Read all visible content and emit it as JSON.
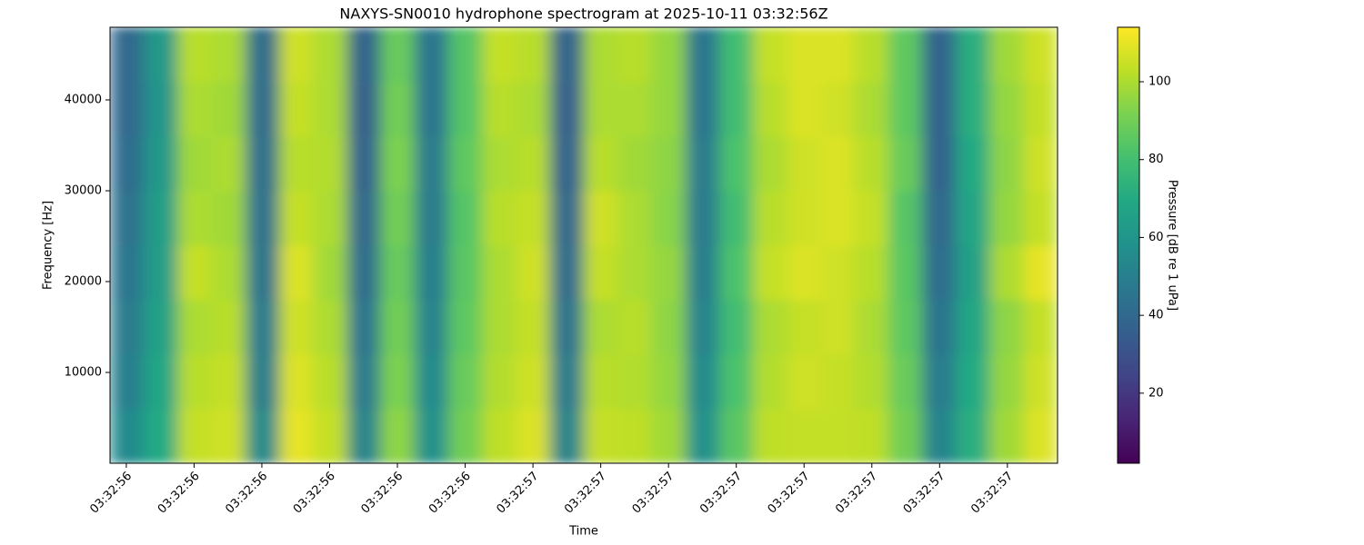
{
  "chart_data": {
    "type": "heatmap",
    "title": "NAXYS-SN0010 hydrophone spectrogram at 2025-10-11 03:32:56Z",
    "xlabel": "Time",
    "ylabel": "Frequency [Hz]",
    "colorbar_label": "Pressure [dB re 1 uPa]",
    "colormap": "viridis",
    "x_bins": [
      56.376,
      56.426,
      56.476,
      56.526,
      56.576,
      56.626,
      56.676,
      56.726,
      56.775,
      56.825,
      56.875,
      56.925,
      56.975,
      57.025,
      57.075,
      57.125,
      57.175,
      57.225,
      57.275,
      57.325,
      57.375,
      57.425,
      57.474,
      57.524,
      57.574,
      57.624,
      57.674,
      57.724,
      57.774
    ],
    "y_bins": [
      0,
      6000,
      12000,
      18000,
      24000,
      30000,
      36000,
      42000,
      48000
    ],
    "values": [
      [
        55,
        70,
        104,
        106,
        55,
        110,
        104,
        52,
        95,
        58,
        90,
        103,
        108,
        52,
        104,
        103,
        98,
        58,
        85,
        103,
        104,
        104,
        103,
        90,
        52,
        72,
        98,
        108
      ],
      [
        50,
        68,
        102,
        104,
        50,
        108,
        102,
        48,
        92,
        55,
        88,
        101,
        106,
        48,
        102,
        101,
        96,
        55,
        82,
        101,
        106,
        104,
        101,
        88,
        48,
        70,
        96,
        106
      ],
      [
        48,
        66,
        100,
        102,
        48,
        106,
        100,
        45,
        90,
        52,
        86,
        100,
        104,
        45,
        100,
        102,
        95,
        52,
        80,
        100,
        104,
        106,
        100,
        86,
        45,
        68,
        95,
        104
      ],
      [
        46,
        64,
        104,
        100,
        45,
        108,
        98,
        42,
        88,
        50,
        85,
        100,
        106,
        42,
        104,
        100,
        96,
        50,
        82,
        104,
        108,
        106,
        102,
        85,
        42,
        66,
        100,
        110
      ],
      [
        44,
        64,
        100,
        98,
        44,
        104,
        100,
        40,
        90,
        48,
        84,
        102,
        104,
        40,
        106,
        100,
        94,
        48,
        80,
        102,
        106,
        108,
        104,
        84,
        40,
        68,
        96,
        104
      ],
      [
        42,
        62,
        98,
        100,
        43,
        102,
        101,
        38,
        92,
        48,
        86,
        100,
        102,
        38,
        102,
        98,
        95,
        48,
        82,
        100,
        106,
        108,
        102,
        88,
        38,
        70,
        95,
        106
      ],
      [
        40,
        60,
        100,
        98,
        42,
        104,
        100,
        36,
        90,
        46,
        84,
        102,
        100,
        36,
        100,
        100,
        96,
        46,
        80,
        102,
        108,
        106,
        100,
        86,
        38,
        72,
        96,
        104
      ],
      [
        40,
        62,
        102,
        100,
        42,
        106,
        100,
        38,
        88,
        46,
        84,
        104,
        102,
        38,
        100,
        102,
        96,
        46,
        80,
        104,
        108,
        108,
        102,
        86,
        38,
        72,
        98,
        106
      ]
    ],
    "xlim": [
      56.376,
      57.774
    ],
    "xticks": [
      {
        "value": 56.4,
        "label": "03:32:56"
      },
      {
        "value": 56.5,
        "label": "03:32:56"
      },
      {
        "value": 56.6,
        "label": "03:32:56"
      },
      {
        "value": 56.7,
        "label": "03:32:56"
      },
      {
        "value": 56.8,
        "label": "03:32:56"
      },
      {
        "value": 56.9,
        "label": "03:32:56"
      },
      {
        "value": 57.0,
        "label": "03:32:57"
      },
      {
        "value": 57.1,
        "label": "03:32:57"
      },
      {
        "value": 57.2,
        "label": "03:32:57"
      },
      {
        "value": 57.3,
        "label": "03:32:57"
      },
      {
        "value": 57.4,
        "label": "03:32:57"
      },
      {
        "value": 57.5,
        "label": "03:32:57"
      },
      {
        "value": 57.6,
        "label": "03:32:57"
      },
      {
        "value": 57.7,
        "label": "03:32:57"
      }
    ],
    "ylim": [
      0,
      48000
    ],
    "yticks": [
      10000,
      20000,
      30000,
      40000
    ],
    "clim": [
      2,
      114
    ],
    "cticks": [
      20,
      40,
      60,
      80,
      100
    ]
  }
}
